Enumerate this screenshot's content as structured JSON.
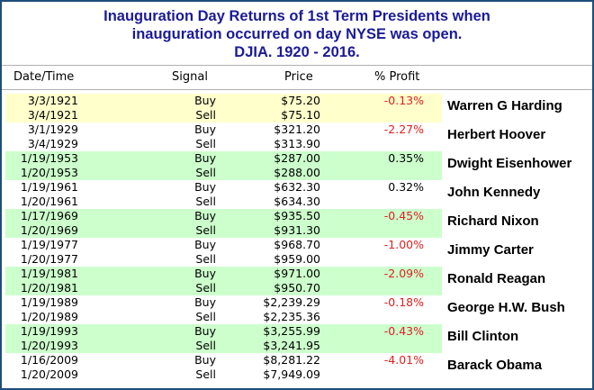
{
  "title_lines": [
    "Inauguration Day Returns of 1st Term Presidents when",
    "inauguration occurred on day NYSE was open.",
    "DJIA. 1920 - 2016."
  ],
  "columns": [
    "Date/Time",
    "Signal",
    "Price",
    "% Profit"
  ],
  "colors": {
    "highlight_yellow": "#ffffcc",
    "highlight_green": "#ccffcc",
    "loss_red": "#e02020",
    "title_blue": "#1a1a99"
  },
  "trades": [
    {
      "president": "Warren G Harding",
      "highlight": "yellow",
      "profit": "-0.13%",
      "loss": true,
      "buy": {
        "date": "3/3/1921",
        "signal": "Buy",
        "price": "$75.20"
      },
      "sell": {
        "date": "3/4/1921",
        "signal": "Sell",
        "price": "$75.10"
      }
    },
    {
      "president": "Herbert Hoover",
      "highlight": "none",
      "profit": "-2.27%",
      "loss": true,
      "buy": {
        "date": "3/1/1929",
        "signal": "Buy",
        "price": "$321.20"
      },
      "sell": {
        "date": "3/4/1929",
        "signal": "Sell",
        "price": "$313.90"
      }
    },
    {
      "president": "Dwight Eisenhower",
      "highlight": "green",
      "profit": "0.35%",
      "loss": false,
      "buy": {
        "date": "1/19/1953",
        "signal": "Buy",
        "price": "$287.00"
      },
      "sell": {
        "date": "1/20/1953",
        "signal": "Sell",
        "price": "$288.00"
      }
    },
    {
      "president": "John Kennedy",
      "highlight": "none",
      "profit": "0.32%",
      "loss": false,
      "buy": {
        "date": "1/19/1961",
        "signal": "Buy",
        "price": "$632.30"
      },
      "sell": {
        "date": "1/20/1961",
        "signal": "Sell",
        "price": "$634.30"
      }
    },
    {
      "president": "Richard Nixon",
      "highlight": "green",
      "profit": "-0.45%",
      "loss": true,
      "buy": {
        "date": "1/17/1969",
        "signal": "Buy",
        "price": "$935.50"
      },
      "sell": {
        "date": "1/20/1969",
        "signal": "Sell",
        "price": "$931.30"
      }
    },
    {
      "president": "Jimmy Carter",
      "highlight": "none",
      "profit": "-1.00%",
      "loss": true,
      "buy": {
        "date": "1/19/1977",
        "signal": "Buy",
        "price": "$968.70"
      },
      "sell": {
        "date": "1/20/1977",
        "signal": "Sell",
        "price": "$959.00"
      }
    },
    {
      "president": "Ronald Reagan",
      "highlight": "green",
      "profit": "-2.09%",
      "loss": true,
      "buy": {
        "date": "1/19/1981",
        "signal": "Buy",
        "price": "$971.00"
      },
      "sell": {
        "date": "1/20/1981",
        "signal": "Sell",
        "price": "$950.70"
      }
    },
    {
      "president": "George H.W. Bush",
      "highlight": "none",
      "profit": "-0.18%",
      "loss": true,
      "buy": {
        "date": "1/19/1989",
        "signal": "Buy",
        "price": "$2,239.29"
      },
      "sell": {
        "date": "1/20/1989",
        "signal": "Sell",
        "price": "$2,235.36"
      }
    },
    {
      "president": "Bill Clinton",
      "highlight": "green",
      "profit": "-0.43%",
      "loss": true,
      "buy": {
        "date": "1/19/1993",
        "signal": "Buy",
        "price": "$3,255.99"
      },
      "sell": {
        "date": "1/20/1993",
        "signal": "Sell",
        "price": "$3,241.95"
      }
    },
    {
      "president": "Barack Obama",
      "highlight": "none",
      "profit": "-4.01%",
      "loss": true,
      "buy": {
        "date": "1/16/2009",
        "signal": "Buy",
        "price": "$8,281.22"
      },
      "sell": {
        "date": "1/20/2009",
        "signal": "Sell",
        "price": "$7,949.09"
      }
    }
  ]
}
